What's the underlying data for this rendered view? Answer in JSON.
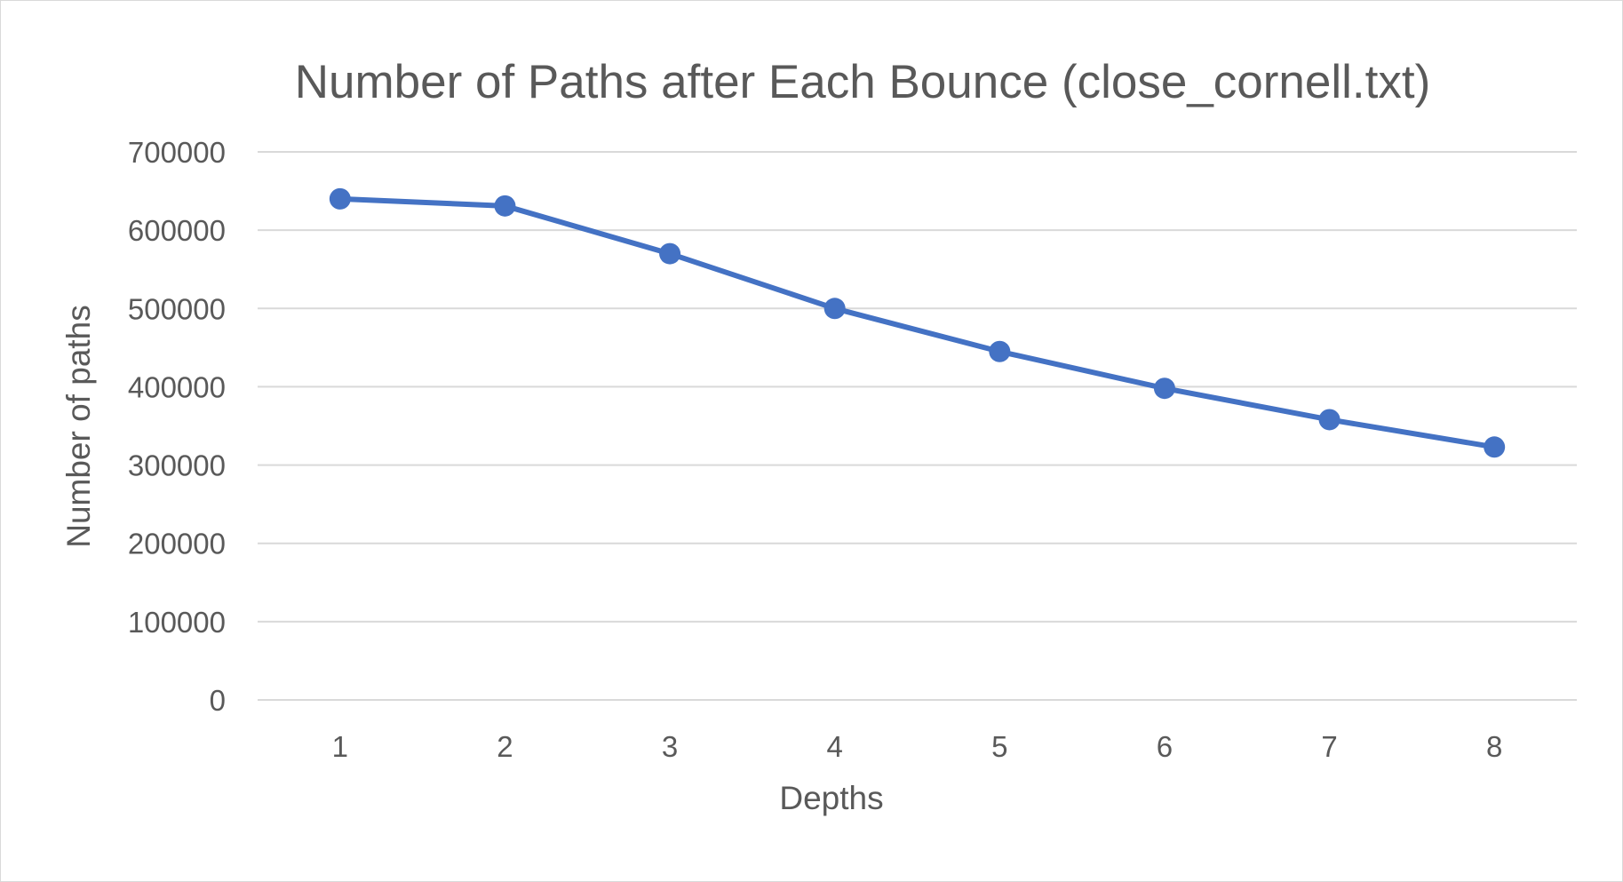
{
  "chart_data": {
    "type": "line",
    "title": "Number of Paths after Each Bounce (close_cornell.txt)",
    "xlabel": "Depths",
    "ylabel": "Number of paths",
    "categories": [
      "1",
      "2",
      "3",
      "4",
      "5",
      "6",
      "7",
      "8"
    ],
    "series": [
      {
        "values": [
          640000,
          631000,
          570000,
          500000,
          445000,
          398000,
          358000,
          323000
        ]
      }
    ],
    "ylim": [
      0,
      700000
    ],
    "yticks": [
      0,
      100000,
      200000,
      300000,
      400000,
      500000,
      600000,
      700000
    ],
    "ytick_labels": [
      "0",
      "100000",
      "200000",
      "300000",
      "400000",
      "500000",
      "600000",
      "700000"
    ],
    "grid": true,
    "legend": "none",
    "colors": {
      "series": "#4472c4",
      "grid": "#d9d9d9",
      "text": "#595959"
    }
  }
}
